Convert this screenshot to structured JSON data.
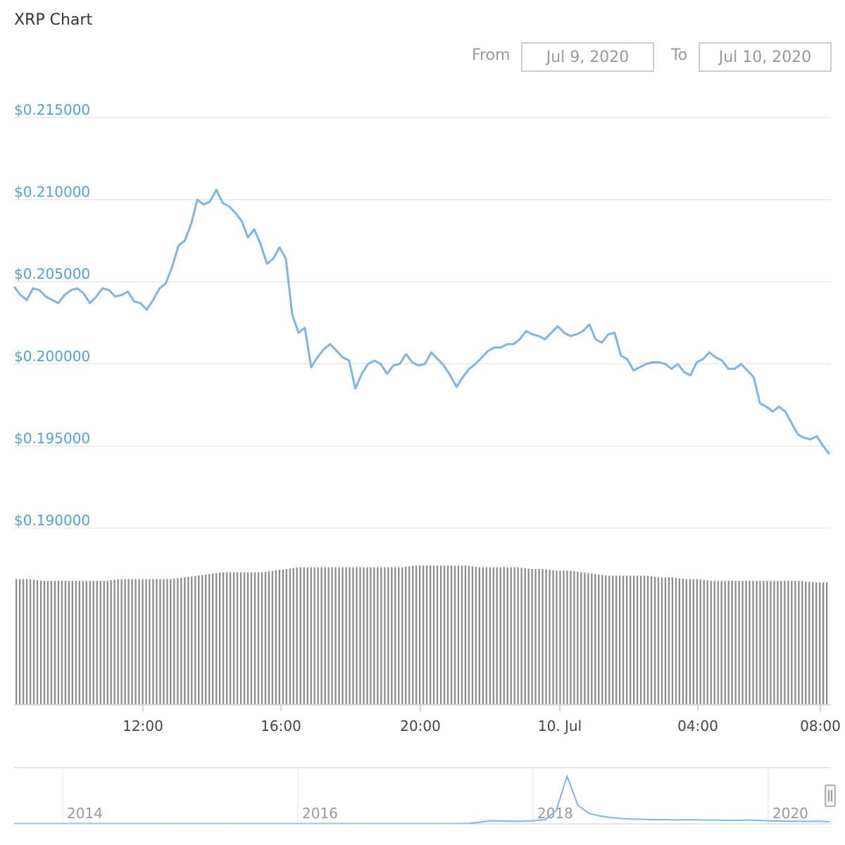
{
  "title": "XRP Chart",
  "range_selector": {
    "from_label": "From",
    "from_value": "Jul 9, 2020",
    "to_label": "To",
    "to_value": "Jul 10, 2020"
  },
  "colors": {
    "line": "#7eb5e6",
    "y_labels": "#4fa3d8",
    "grid": "#e0e0e0",
    "volume": "#8c8c8c"
  },
  "navigator_handle_icon": "drag-handle-icon",
  "chart_data": [
    {
      "type": "line",
      "title": "",
      "x_range": [
        "Jul 9, 2020 08:20",
        "Jul 10, 2020 08:20"
      ],
      "ylim": [
        0.19,
        0.215
      ],
      "y_ticks": [
        "$0.215000",
        "$0.210000",
        "$0.205000",
        "$0.200000",
        "$0.195000",
        "$0.190000"
      ],
      "x_ticks": [
        "12:00",
        "16:00",
        "20:00",
        "10. Jul",
        "04:00",
        "08:00"
      ],
      "grid": true,
      "series": [
        {
          "values": [
            0.2047,
            0.2042,
            0.2039,
            0.2046,
            0.2045,
            0.2041,
            0.2039,
            0.2037,
            0.2042,
            0.2045,
            0.2046,
            0.2043,
            0.2037,
            0.2041,
            0.2046,
            0.2045,
            0.2041,
            0.2042,
            0.2044,
            0.2038,
            0.2037,
            0.2033,
            0.2039,
            0.2046,
            0.2049,
            0.2059,
            0.2072,
            0.2075,
            0.2085,
            0.21,
            0.2097,
            0.2099,
            0.2106,
            0.2098,
            0.2096,
            0.2092,
            0.2087,
            0.2077,
            0.2082,
            0.2073,
            0.2061,
            0.2064,
            0.2071,
            0.2064,
            0.203,
            0.2019,
            0.2022,
            0.1998,
            0.2004,
            0.2009,
            0.2012,
            0.2008,
            0.2004,
            0.2002,
            0.1985,
            0.1994,
            0.2,
            0.2002,
            0.2,
            0.1994,
            0.1999,
            0.2,
            0.2006,
            0.2001,
            0.1999,
            0.2,
            0.2007,
            0.2003,
            0.1999,
            0.1993,
            0.1986,
            0.1992,
            0.1997,
            0.2,
            0.2004,
            0.2008,
            0.201,
            0.201,
            0.2012,
            0.2012,
            0.2015,
            0.202,
            0.2018,
            0.2017,
            0.2015,
            0.2019,
            0.2023,
            0.2019,
            0.2017,
            0.2018,
            0.202,
            0.2024,
            0.2015,
            0.2013,
            0.2018,
            0.2019,
            0.2005,
            0.2003,
            0.1996,
            0.1998,
            0.2,
            0.2001,
            0.2001,
            0.2,
            0.1997,
            0.2,
            0.1995,
            0.1993,
            0.2001,
            0.2003,
            0.2007,
            0.2004,
            0.2002,
            0.1997,
            0.1997,
            0.2,
            0.1996,
            0.1992,
            0.1976,
            0.1974,
            0.1971,
            0.1974,
            0.1971,
            0.1964,
            0.1957,
            0.1955,
            0.1954,
            0.1956,
            0.195,
            0.1945
          ]
        }
      ]
    },
    {
      "type": "bar",
      "title": "",
      "description_note": "",
      "series": [
        {
          "values": [
            0.74,
            0.74,
            0.73,
            0.73,
            0.73,
            0.73,
            0.73,
            0.73,
            0.74,
            0.74,
            0.74,
            0.74,
            0.74,
            0.75,
            0.76,
            0.77,
            0.78,
            0.78,
            0.78,
            0.78,
            0.79,
            0.8,
            0.81,
            0.81,
            0.81,
            0.81,
            0.81,
            0.81,
            0.81,
            0.81,
            0.81,
            0.82,
            0.82,
            0.82,
            0.82,
            0.82,
            0.81,
            0.81,
            0.81,
            0.81,
            0.8,
            0.8,
            0.79,
            0.79,
            0.78,
            0.77,
            0.76,
            0.76,
            0.76,
            0.76,
            0.75,
            0.75,
            0.74,
            0.74,
            0.73,
            0.73,
            0.73,
            0.73,
            0.73,
            0.73,
            0.73,
            0.73,
            0.72,
            0.72
          ]
        }
      ]
    },
    {
      "type": "area",
      "title": "",
      "x_ticks": [
        "2014",
        "2016",
        "2018",
        "2020"
      ],
      "series": [
        {
          "values": [
            0.005,
            0.005,
            0.006,
            0.005,
            0.005,
            0.006,
            0.006,
            0.005,
            0.005,
            0.005,
            0.006,
            0.005,
            0.005,
            0.006,
            0.007,
            0.01,
            0.03,
            0.06,
            0.055,
            0.05,
            0.05,
            0.06,
            0.08,
            0.25,
            0.9,
            0.35,
            0.2,
            0.15,
            0.12,
            0.1,
            0.09,
            0.085,
            0.08,
            0.08,
            0.075,
            0.08,
            0.075,
            0.07,
            0.07,
            0.065,
            0.07,
            0.07,
            0.06,
            0.055,
            0.05,
            0.05,
            0.045,
            0.05,
            0.04
          ]
        }
      ]
    }
  ]
}
